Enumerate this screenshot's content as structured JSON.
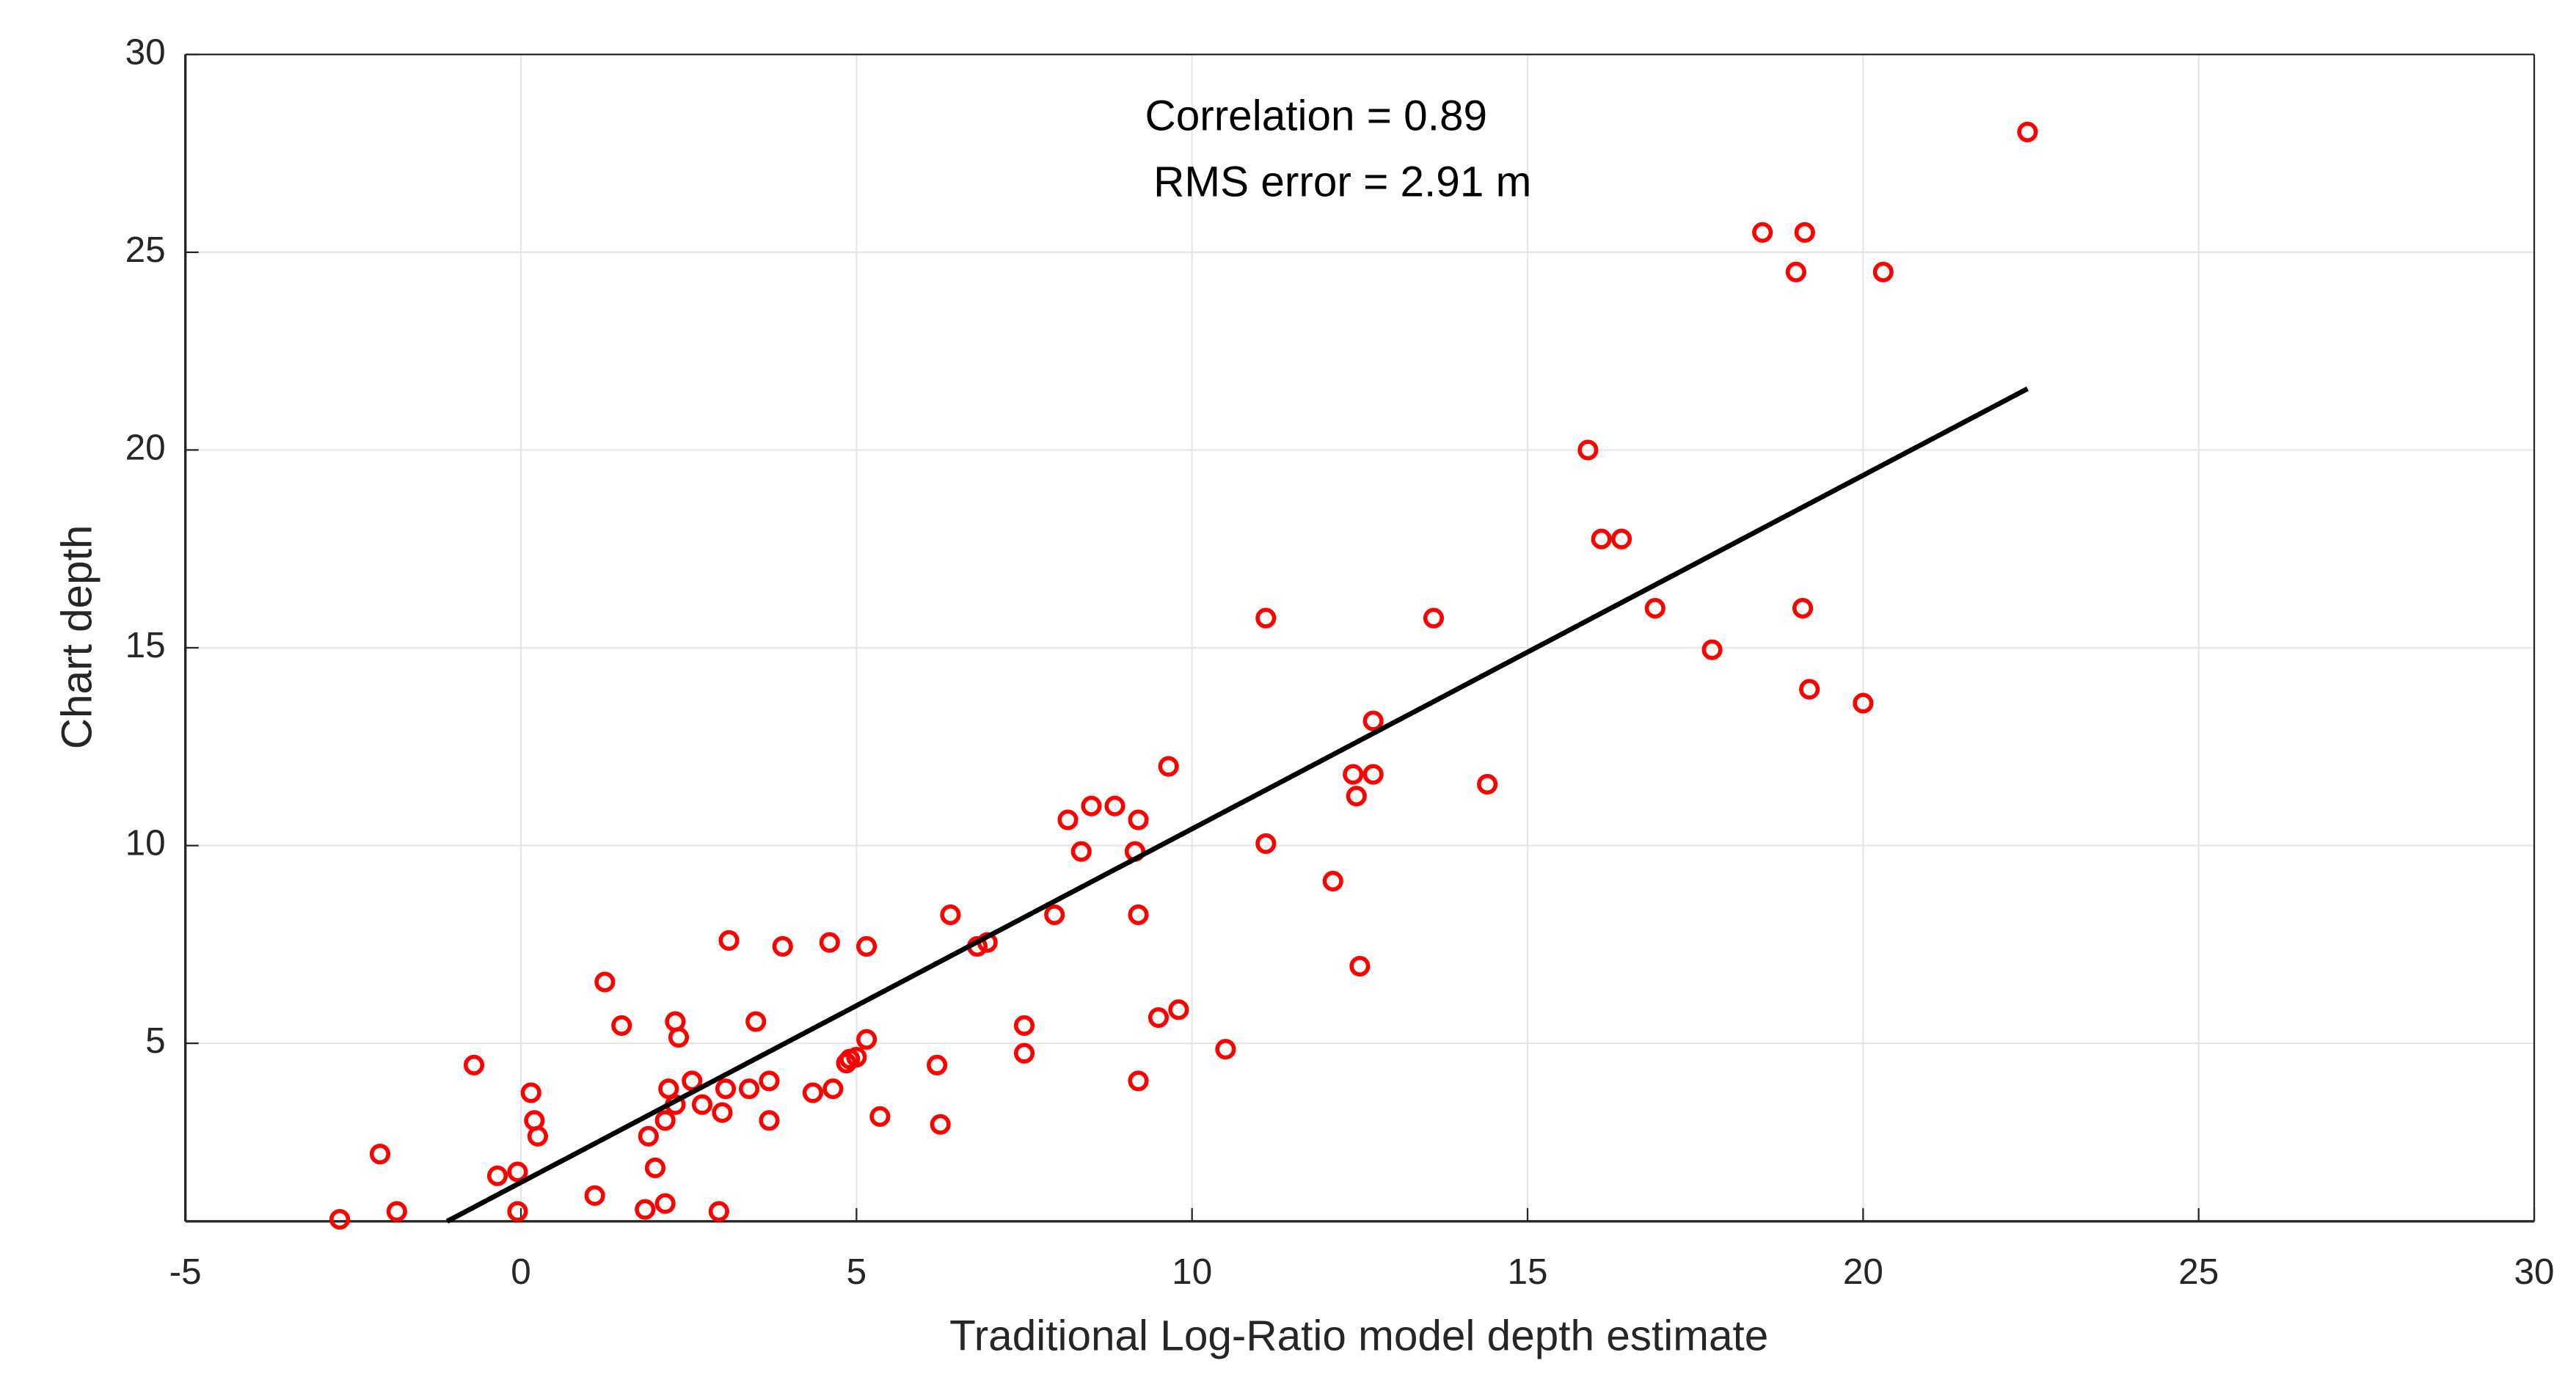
{
  "chart_data": {
    "type": "scatter",
    "xlabel": "Traditional Log-Ratio model depth estimate",
    "ylabel": "Chart depth",
    "annotations": [
      "Correlation = 0.89",
      "RMS error = 2.91 m"
    ],
    "x": [
      22.45,
      18.5,
      19.13,
      19.0,
      20.3,
      15.9,
      16.1,
      16.4,
      16.9,
      19.1,
      17.75,
      19.2,
      20.0,
      11.1,
      13.6,
      12.7,
      12.4,
      12.7,
      12.45,
      14.4,
      9.65,
      8.5,
      8.85,
      8.15,
      9.2,
      8.35,
      9.15,
      11.1,
      12.1,
      7.95,
      9.2,
      6.4,
      6.8,
      6.95,
      12.5,
      3.1,
      3.9,
      4.6,
      5.15,
      1.25,
      1.5,
      2.3,
      2.35,
      3.5,
      7.5,
      7.5,
      9.8,
      9.5,
      10.5,
      5.15,
      4.85,
      4.9,
      5.0,
      6.2,
      9.2,
      -0.7,
      0.15,
      2.2,
      2.55,
      3.05,
      3.4,
      3.7,
      4.35,
      4.65,
      2.3,
      2.7,
      3.0,
      0.2,
      2.15,
      3.7,
      5.35,
      6.25,
      0.25,
      1.9,
      -2.1,
      2.0,
      -0.35,
      -0.05,
      1.1,
      1.85,
      2.15,
      -1.85,
      -0.05,
      2.95,
      -2.7
    ],
    "y": [
      28.04,
      25.5,
      25.5,
      24.5,
      24.5,
      20.0,
      17.75,
      17.75,
      16.0,
      16.0,
      14.95,
      13.95,
      13.6,
      15.75,
      15.75,
      13.15,
      11.8,
      11.8,
      11.25,
      11.55,
      12.0,
      11.0,
      11.0,
      10.65,
      10.65,
      9.85,
      9.85,
      10.05,
      9.1,
      8.25,
      8.25,
      8.25,
      7.45,
      7.55,
      6.95,
      7.6,
      7.45,
      7.55,
      7.45,
      6.55,
      5.45,
      5.55,
      5.15,
      5.55,
      5.45,
      4.75,
      5.85,
      5.65,
      4.85,
      5.1,
      4.5,
      4.6,
      4.65,
      4.45,
      4.05,
      4.45,
      3.75,
      3.85,
      4.05,
      3.85,
      3.85,
      4.05,
      3.75,
      3.85,
      3.45,
      3.45,
      3.25,
      3.05,
      3.05,
      3.05,
      3.15,
      2.95,
      2.65,
      2.65,
      2.2,
      1.85,
      1.65,
      1.75,
      1.15,
      0.8,
      0.95,
      0.75,
      0.75,
      0.75,
      0.55
    ],
    "color": "#ff0000",
    "fit_line": {
      "x": [
        -1.1,
        22.45
      ],
      "y": [
        0.5,
        21.55
      ],
      "color": "#000000"
    },
    "xlim": [
      -5,
      30
    ],
    "ylim": [
      0.5,
      30
    ],
    "xticks": [
      -5,
      0,
      5,
      10,
      15,
      20,
      25,
      30
    ],
    "yticks": [
      5,
      10,
      15,
      20,
      25,
      30
    ],
    "grid": true
  }
}
